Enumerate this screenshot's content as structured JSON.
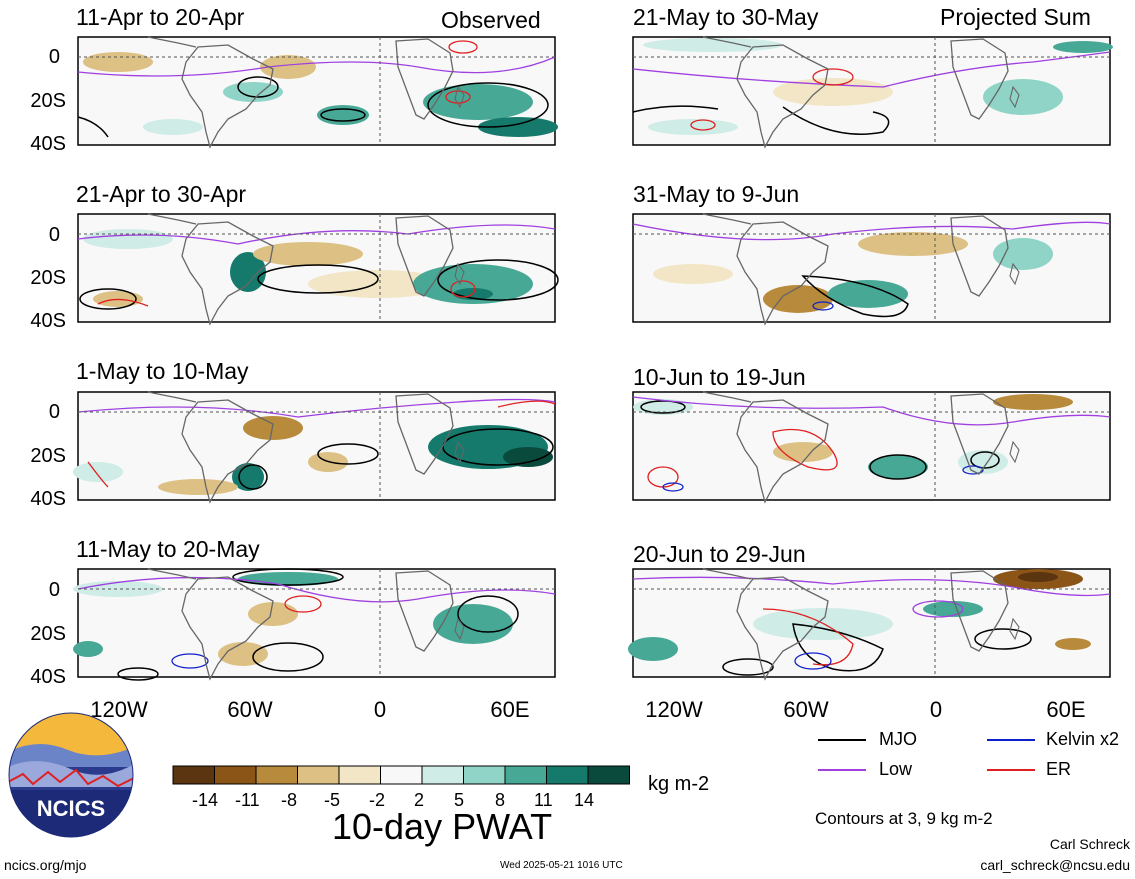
{
  "header": {
    "left_label": "Observed",
    "right_label": "Projected Sum"
  },
  "panels": [
    {
      "title": "11-Apr to 20-Apr"
    },
    {
      "title": "21-Apr to 30-Apr"
    },
    {
      "title": "1-May to 10-May"
    },
    {
      "title": "11-May to 20-May"
    },
    {
      "title": "21-May to 30-May"
    },
    {
      "title": "31-May to 9-Jun"
    },
    {
      "title": "10-Jun to 19-Jun"
    },
    {
      "title": "20-Jun to 29-Jun"
    }
  ],
  "y_axis": [
    "0",
    "20S",
    "40S"
  ],
  "x_axis": [
    "120W",
    "60W",
    "0",
    "60E"
  ],
  "colorbar": {
    "ticks": [
      "-14",
      "-11",
      "-8",
      "-5",
      "-2",
      "2",
      "5",
      "8",
      "11",
      "14"
    ],
    "colors": [
      "#5a3510",
      "#8b5518",
      "#b88a3c",
      "#dcc084",
      "#f2e6c6",
      "#f8f8f8",
      "#cfece6",
      "#8fd4c6",
      "#48a896",
      "#157a6c",
      "#0a4a3c"
    ],
    "unit": "kg m-2",
    "title": "10-day PWAT"
  },
  "legend": {
    "items": [
      {
        "label": "MJO",
        "color": "#000000"
      },
      {
        "label": "Kelvin x2",
        "color": "#1020c8"
      },
      {
        "label": "Low",
        "color": "#a040e0"
      },
      {
        "label": "ER",
        "color": "#e02020"
      }
    ],
    "contours_note": "Contours at 3, 9 kg m-2"
  },
  "logo": {
    "text": "NCICS"
  },
  "footer": {
    "url": "ncics.org/mjo",
    "timestamp": "Wed 2025-05-21 1016 UTC",
    "author": "Carl Schreck",
    "email": "carl_schreck@ncsu.edu"
  }
}
